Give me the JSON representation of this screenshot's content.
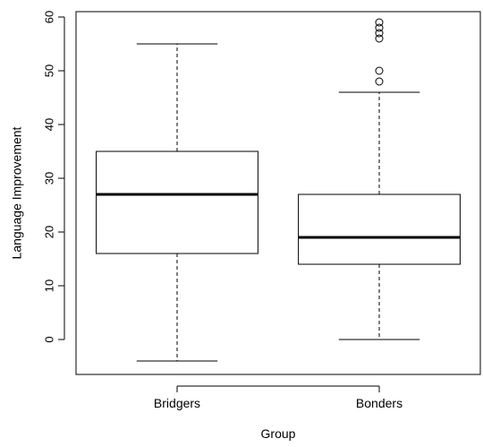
{
  "chart_data": {
    "type": "boxplot",
    "title": "",
    "xlabel": "Group",
    "ylabel": "Language Improvement",
    "ylim": [
      -6.5,
      61
    ],
    "y_ticks": [
      0,
      10,
      20,
      30,
      40,
      50,
      60
    ],
    "categories": [
      "Bridgers",
      "Bonders"
    ],
    "boxes": [
      {
        "name": "Bridgers",
        "whisker_low": -4,
        "q1": 16,
        "median": 27,
        "q3": 35,
        "whisker_high": 55,
        "outliers": []
      },
      {
        "name": "Bonders",
        "whisker_low": 0,
        "q1": 14,
        "median": 19,
        "q3": 27,
        "whisker_high": 46,
        "outliers": [
          48,
          50,
          56,
          57,
          58,
          59
        ]
      }
    ],
    "grid": false,
    "legend": "none"
  }
}
